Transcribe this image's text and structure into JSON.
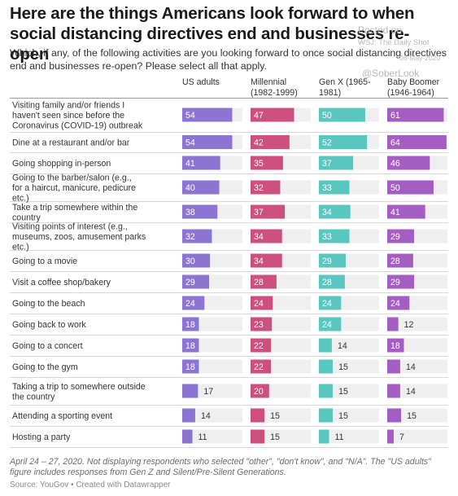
{
  "title": "Here are the things Americans look forward to when social distancing directives end and businesses re-open",
  "subtitle": "Which, if any, of the following activities are you looking forward to once social distancing directives end and businesses re-open? Please select all that apply.",
  "watermark": {
    "posted": "Posted on",
    "source": "WSJ: The Daily Shot",
    "date": "06-May-2020",
    "handle": "@SoberLook"
  },
  "notes": "April 24 – 27, 2020. Not displaying respondents who selected \"other\", \"don't know\", and \"N/A\". The \"US adults\" figure includes responses from Gen Z and Silent/Pre-Silent Generations.",
  "source": "Source: YouGov • Created with Datawrapper",
  "chart_data": {
    "type": "bar",
    "layout": "small-multiples",
    "xlim": [
      0,
      65
    ],
    "colors": {
      "US adults": "#8b74d2",
      "Millennial (1982-1999)": "#cd4f7e",
      "Gen X (1965-1981)": "#59c6c0",
      "Baby Boomer (1946-1964)": "#a45dc3"
    },
    "track_color": "#efefef",
    "categories": [
      "Visiting family and/or friends I haven't seen since before the Coronavirus (COVID-19) outbreak",
      "Dine at a restaurant and/or bar",
      "Going shopping in-person",
      "Going to the barber/salon (e.g., for a haircut, manicure, pedicure etc.)",
      "Take a trip somewhere within the country",
      "Visiting points of interest (e.g., museums, zoos, amusement parks etc.)",
      "Going to a movie",
      "Visit a coffee shop/bakery",
      "Going to the beach",
      "Going back to work",
      "Going to a concert",
      "Going to the gym",
      "Taking a trip to somewhere outside the country",
      "Attending a sporting event",
      "Hosting a party"
    ],
    "series": [
      {
        "name": "US adults",
        "header": "US adults",
        "values": [
          54,
          54,
          41,
          40,
          38,
          32,
          30,
          29,
          24,
          18,
          18,
          18,
          17,
          14,
          11
        ]
      },
      {
        "name": "Millennial (1982-1999)",
        "header": "Millennial\n(1982-1999)",
        "values": [
          47,
          42,
          35,
          32,
          37,
          34,
          34,
          28,
          24,
          23,
          22,
          22,
          20,
          15,
          15
        ]
      },
      {
        "name": "Gen X (1965-1981)",
        "header": "Gen X (1965-\n1981)",
        "values": [
          50,
          52,
          37,
          33,
          34,
          33,
          29,
          28,
          24,
          24,
          14,
          15,
          15,
          15,
          11
        ]
      },
      {
        "name": "Baby Boomer (1946-1964)",
        "header": "Baby Boomer\n(1946-1964)",
        "values": [
          61,
          64,
          46,
          50,
          41,
          29,
          28,
          29,
          24,
          12,
          18,
          14,
          14,
          15,
          7
        ]
      }
    ]
  }
}
